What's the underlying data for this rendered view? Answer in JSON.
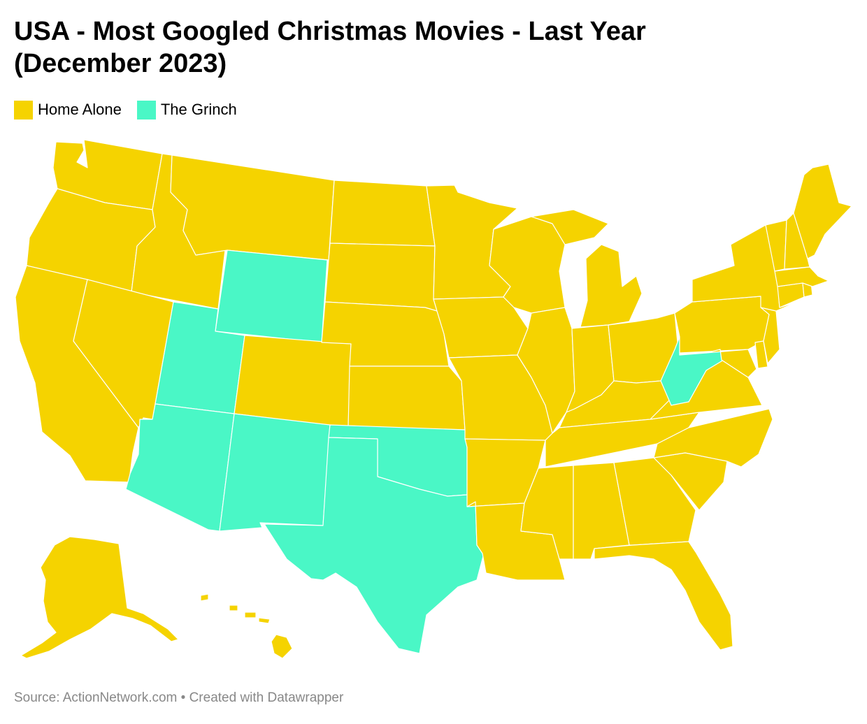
{
  "title": {
    "line1": "USA - Most Googled Christmas Movies - Last Year",
    "line2": "(December 2023)"
  },
  "legend": [
    {
      "label": "Home Alone",
      "color": "#f5d300"
    },
    {
      "label": "The Grinch",
      "color": "#4af7c6"
    }
  ],
  "map_data": {
    "type": "choropleth",
    "region": "USA",
    "categories": {
      "home_alone": {
        "label": "Home Alone",
        "color": "#f5d300"
      },
      "the_grinch": {
        "label": "The Grinch",
        "color": "#4af7c6"
      }
    },
    "states": {
      "WA": "home_alone",
      "OR": "home_alone",
      "CA": "home_alone",
      "ID": "home_alone",
      "NV": "home_alone",
      "MT": "home_alone",
      "WY": "the_grinch",
      "UT": "the_grinch",
      "AZ": "the_grinch",
      "CO": "home_alone",
      "NM": "the_grinch",
      "ND": "home_alone",
      "SD": "home_alone",
      "NE": "home_alone",
      "KS": "home_alone",
      "OK": "the_grinch",
      "TX": "the_grinch",
      "MN": "home_alone",
      "IA": "home_alone",
      "MO": "home_alone",
      "AR": "home_alone",
      "LA": "home_alone",
      "WI": "home_alone",
      "IL": "home_alone",
      "MI": "home_alone",
      "IN": "home_alone",
      "OH": "home_alone",
      "KY": "home_alone",
      "TN": "home_alone",
      "MS": "home_alone",
      "AL": "home_alone",
      "GA": "home_alone",
      "FL": "home_alone",
      "SC": "home_alone",
      "NC": "home_alone",
      "VA": "home_alone",
      "WV": "the_grinch",
      "PA": "home_alone",
      "NY": "home_alone",
      "VT": "home_alone",
      "NH": "home_alone",
      "ME": "home_alone",
      "MA": "home_alone",
      "CT": "home_alone",
      "RI": "home_alone",
      "NJ": "home_alone",
      "DE": "home_alone",
      "MD": "home_alone",
      "AK": "home_alone",
      "HI": "home_alone"
    }
  },
  "footer": "Source: ActionNetwork.com • Created with Datawrapper"
}
